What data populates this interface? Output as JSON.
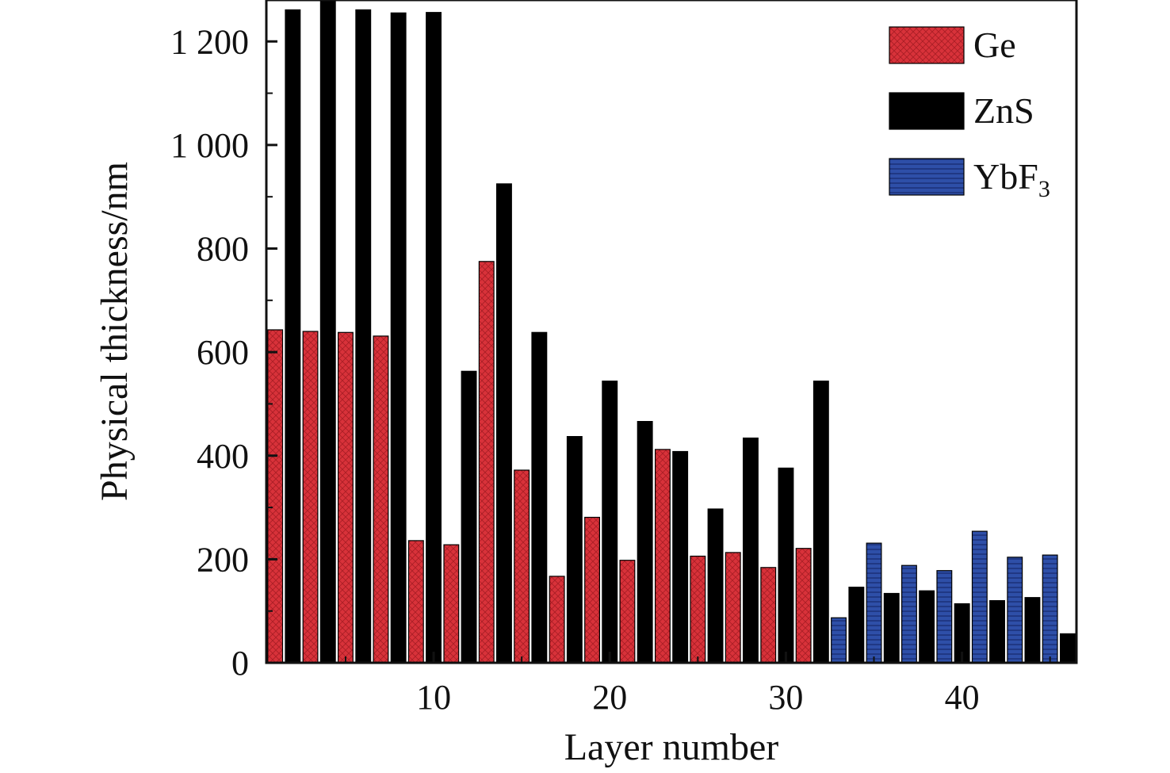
{
  "chart_data": {
    "type": "bar",
    "xlabel": "Layer number",
    "ylabel": "Physical thickness/nm",
    "xlim": [
      0.5,
      46.5
    ],
    "ylim": [
      0,
      1280
    ],
    "xticks": [
      10,
      20,
      30,
      40
    ],
    "yticks": [
      0,
      200,
      400,
      600,
      800,
      1000,
      1200
    ],
    "ytick_labels": [
      "0",
      "200",
      "400",
      "600",
      "800",
      "1 000",
      "1 200"
    ],
    "grid": false,
    "legend_position": "top-right",
    "legend": [
      {
        "key": "Ge",
        "label": "Ge",
        "sub": ""
      },
      {
        "key": "ZnS",
        "label": "ZnS",
        "sub": ""
      },
      {
        "key": "YbF3",
        "label": "YbF",
        "sub": "3"
      }
    ],
    "colors": {
      "Ge": "#d8323a",
      "ZnS": "#000000",
      "YbF3": "#2e4fa8"
    },
    "layers": [
      {
        "layer": 1,
        "material": "Ge",
        "thickness": 643
      },
      {
        "layer": 2,
        "material": "ZnS",
        "thickness": 1261
      },
      {
        "layer": 3,
        "material": "Ge",
        "thickness": 640
      },
      {
        "layer": 4,
        "material": "ZnS",
        "thickness": 1280
      },
      {
        "layer": 5,
        "material": "Ge",
        "thickness": 638
      },
      {
        "layer": 6,
        "material": "ZnS",
        "thickness": 1261
      },
      {
        "layer": 7,
        "material": "Ge",
        "thickness": 631
      },
      {
        "layer": 8,
        "material": "ZnS",
        "thickness": 1255
      },
      {
        "layer": 9,
        "material": "Ge",
        "thickness": 236
      },
      {
        "layer": 10,
        "material": "ZnS",
        "thickness": 1256
      },
      {
        "layer": 11,
        "material": "Ge",
        "thickness": 228
      },
      {
        "layer": 12,
        "material": "ZnS",
        "thickness": 563
      },
      {
        "layer": 13,
        "material": "Ge",
        "thickness": 775
      },
      {
        "layer": 14,
        "material": "ZnS",
        "thickness": 925
      },
      {
        "layer": 15,
        "material": "Ge",
        "thickness": 372
      },
      {
        "layer": 16,
        "material": "ZnS",
        "thickness": 638
      },
      {
        "layer": 17,
        "material": "Ge",
        "thickness": 167
      },
      {
        "layer": 18,
        "material": "ZnS",
        "thickness": 437
      },
      {
        "layer": 19,
        "material": "Ge",
        "thickness": 281
      },
      {
        "layer": 20,
        "material": "ZnS",
        "thickness": 544
      },
      {
        "layer": 21,
        "material": "Ge",
        "thickness": 198
      },
      {
        "layer": 22,
        "material": "ZnS",
        "thickness": 466
      },
      {
        "layer": 23,
        "material": "Ge",
        "thickness": 412
      },
      {
        "layer": 24,
        "material": "ZnS",
        "thickness": 408
      },
      {
        "layer": 25,
        "material": "Ge",
        "thickness": 206
      },
      {
        "layer": 26,
        "material": "ZnS",
        "thickness": 297
      },
      {
        "layer": 27,
        "material": "Ge",
        "thickness": 213
      },
      {
        "layer": 28,
        "material": "ZnS",
        "thickness": 434
      },
      {
        "layer": 29,
        "material": "Ge",
        "thickness": 184
      },
      {
        "layer": 30,
        "material": "ZnS",
        "thickness": 376
      },
      {
        "layer": 31,
        "material": "Ge",
        "thickness": 221
      },
      {
        "layer": 32,
        "material": "ZnS",
        "thickness": 544
      },
      {
        "layer": 33,
        "material": "YbF3",
        "thickness": 87
      },
      {
        "layer": 34,
        "material": "ZnS",
        "thickness": 146
      },
      {
        "layer": 35,
        "material": "YbF3",
        "thickness": 231
      },
      {
        "layer": 36,
        "material": "ZnS",
        "thickness": 134
      },
      {
        "layer": 37,
        "material": "YbF3",
        "thickness": 188
      },
      {
        "layer": 38,
        "material": "ZnS",
        "thickness": 139
      },
      {
        "layer": 39,
        "material": "YbF3",
        "thickness": 178
      },
      {
        "layer": 40,
        "material": "ZnS",
        "thickness": 114
      },
      {
        "layer": 41,
        "material": "YbF3",
        "thickness": 254
      },
      {
        "layer": 42,
        "material": "ZnS",
        "thickness": 120
      },
      {
        "layer": 43,
        "material": "YbF3",
        "thickness": 204
      },
      {
        "layer": 44,
        "material": "ZnS",
        "thickness": 126
      },
      {
        "layer": 45,
        "material": "YbF3",
        "thickness": 208
      },
      {
        "layer": 46,
        "material": "ZnS",
        "thickness": 56
      }
    ]
  }
}
